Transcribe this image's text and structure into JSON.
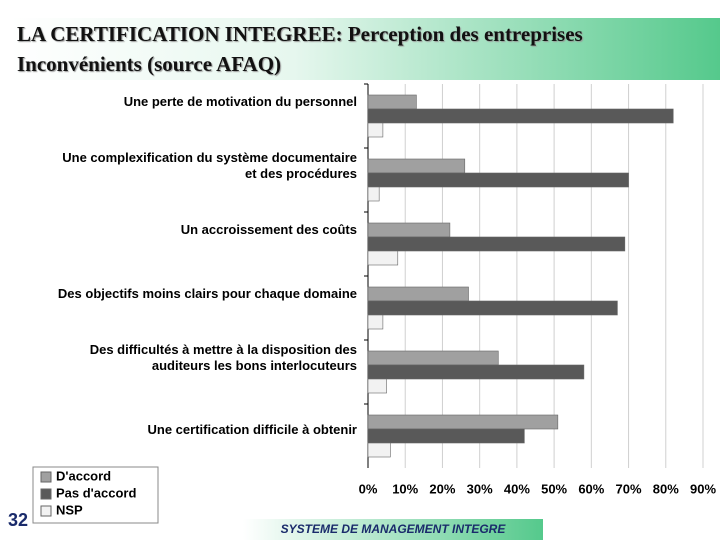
{
  "chart_data": {
    "type": "bar",
    "orientation": "horizontal",
    "title": "LA CERTIFICATION INTEGREE: Perception des entreprises",
    "subtitle": "Inconvénients (source AFAQ)",
    "categories": [
      "Une perte de motivation du personnel",
      "Une complexification du système documentaire\net des procédures",
      "Un accroissement des coûts",
      "Des objectifs moins clairs pour chaque domaine",
      "Des difficultés à mettre à la disposition des\nauditeurs les bons interlocuteurs",
      "Une certification difficile à obtenir"
    ],
    "series": [
      {
        "name": "D'accord",
        "color": "#a0a0a0",
        "values": [
          13,
          26,
          22,
          27,
          35,
          51
        ]
      },
      {
        "name": "Pas d'accord",
        "color": "#595959",
        "values": [
          82,
          70,
          69,
          67,
          58,
          42
        ]
      },
      {
        "name": "NSP",
        "color": "#f2f2f2",
        "values": [
          4,
          3,
          8,
          4,
          5,
          6
        ]
      }
    ],
    "xlim": [
      0,
      90
    ],
    "xticks": [
      {
        "value": 0,
        "label": "0%"
      },
      {
        "value": 10,
        "label": "10%"
      },
      {
        "value": 20,
        "label": "20%"
      },
      {
        "value": 30,
        "label": "30%"
      },
      {
        "value": 40,
        "label": "40%"
      },
      {
        "value": 50,
        "label": "50%"
      },
      {
        "value": 60,
        "label": "60%"
      },
      {
        "value": 70,
        "label": "70%"
      },
      {
        "value": 80,
        "label": "80%"
      },
      {
        "value": 90,
        "label": "90%"
      }
    ],
    "grid": true,
    "legend": "bottom-left",
    "page_number": "32",
    "footer": "SYSTEME DE MANAGEMENT INTEGRE"
  }
}
